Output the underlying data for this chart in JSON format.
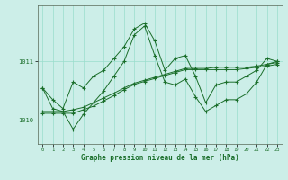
{
  "bg_color": "#cceee8",
  "grid_color": "#99ddcc",
  "line_color": "#1a6e2a",
  "xlabel": "Graphe pression niveau de la mer (hPa)",
  "yticks": [
    1010,
    1011
  ],
  "ylim": [
    1009.6,
    1011.95
  ],
  "xlim": [
    -0.5,
    23.5
  ],
  "xticks": [
    0,
    1,
    2,
    3,
    4,
    5,
    6,
    7,
    8,
    9,
    10,
    11,
    12,
    13,
    14,
    15,
    16,
    17,
    18,
    19,
    20,
    21,
    22,
    23
  ],
  "series1": [
    1010.55,
    1010.35,
    1010.2,
    1010.65,
    1010.55,
    1010.75,
    1010.85,
    1011.05,
    1011.25,
    1011.55,
    1011.65,
    1011.35,
    1010.85,
    1011.05,
    1011.1,
    1010.75,
    1010.3,
    1010.6,
    1010.65,
    1010.65,
    1010.75,
    1010.85,
    1011.05,
    1011.0
  ],
  "series2": [
    1010.15,
    1010.15,
    1010.15,
    1010.18,
    1010.22,
    1010.3,
    1010.38,
    1010.46,
    1010.55,
    1010.63,
    1010.68,
    1010.73,
    1010.78,
    1010.83,
    1010.88,
    1010.88,
    1010.88,
    1010.9,
    1010.9,
    1010.9,
    1010.9,
    1010.92,
    1010.95,
    1010.98
  ],
  "series3": [
    1010.55,
    1010.2,
    1010.15,
    1009.85,
    1010.1,
    1010.3,
    1010.5,
    1010.75,
    1011.0,
    1011.45,
    1011.6,
    1011.1,
    1010.65,
    1010.6,
    1010.7,
    1010.4,
    1010.15,
    1010.25,
    1010.35,
    1010.35,
    1010.45,
    1010.65,
    1010.95,
    1011.0
  ],
  "series4": [
    1010.12,
    1010.12,
    1010.12,
    1010.12,
    1010.18,
    1010.24,
    1010.33,
    1010.42,
    1010.52,
    1010.61,
    1010.66,
    1010.71,
    1010.76,
    1010.81,
    1010.86,
    1010.86,
    1010.86,
    1010.86,
    1010.86,
    1010.86,
    1010.88,
    1010.9,
    1010.92,
    1010.95
  ],
  "figsize": [
    3.2,
    2.0
  ],
  "dpi": 100
}
